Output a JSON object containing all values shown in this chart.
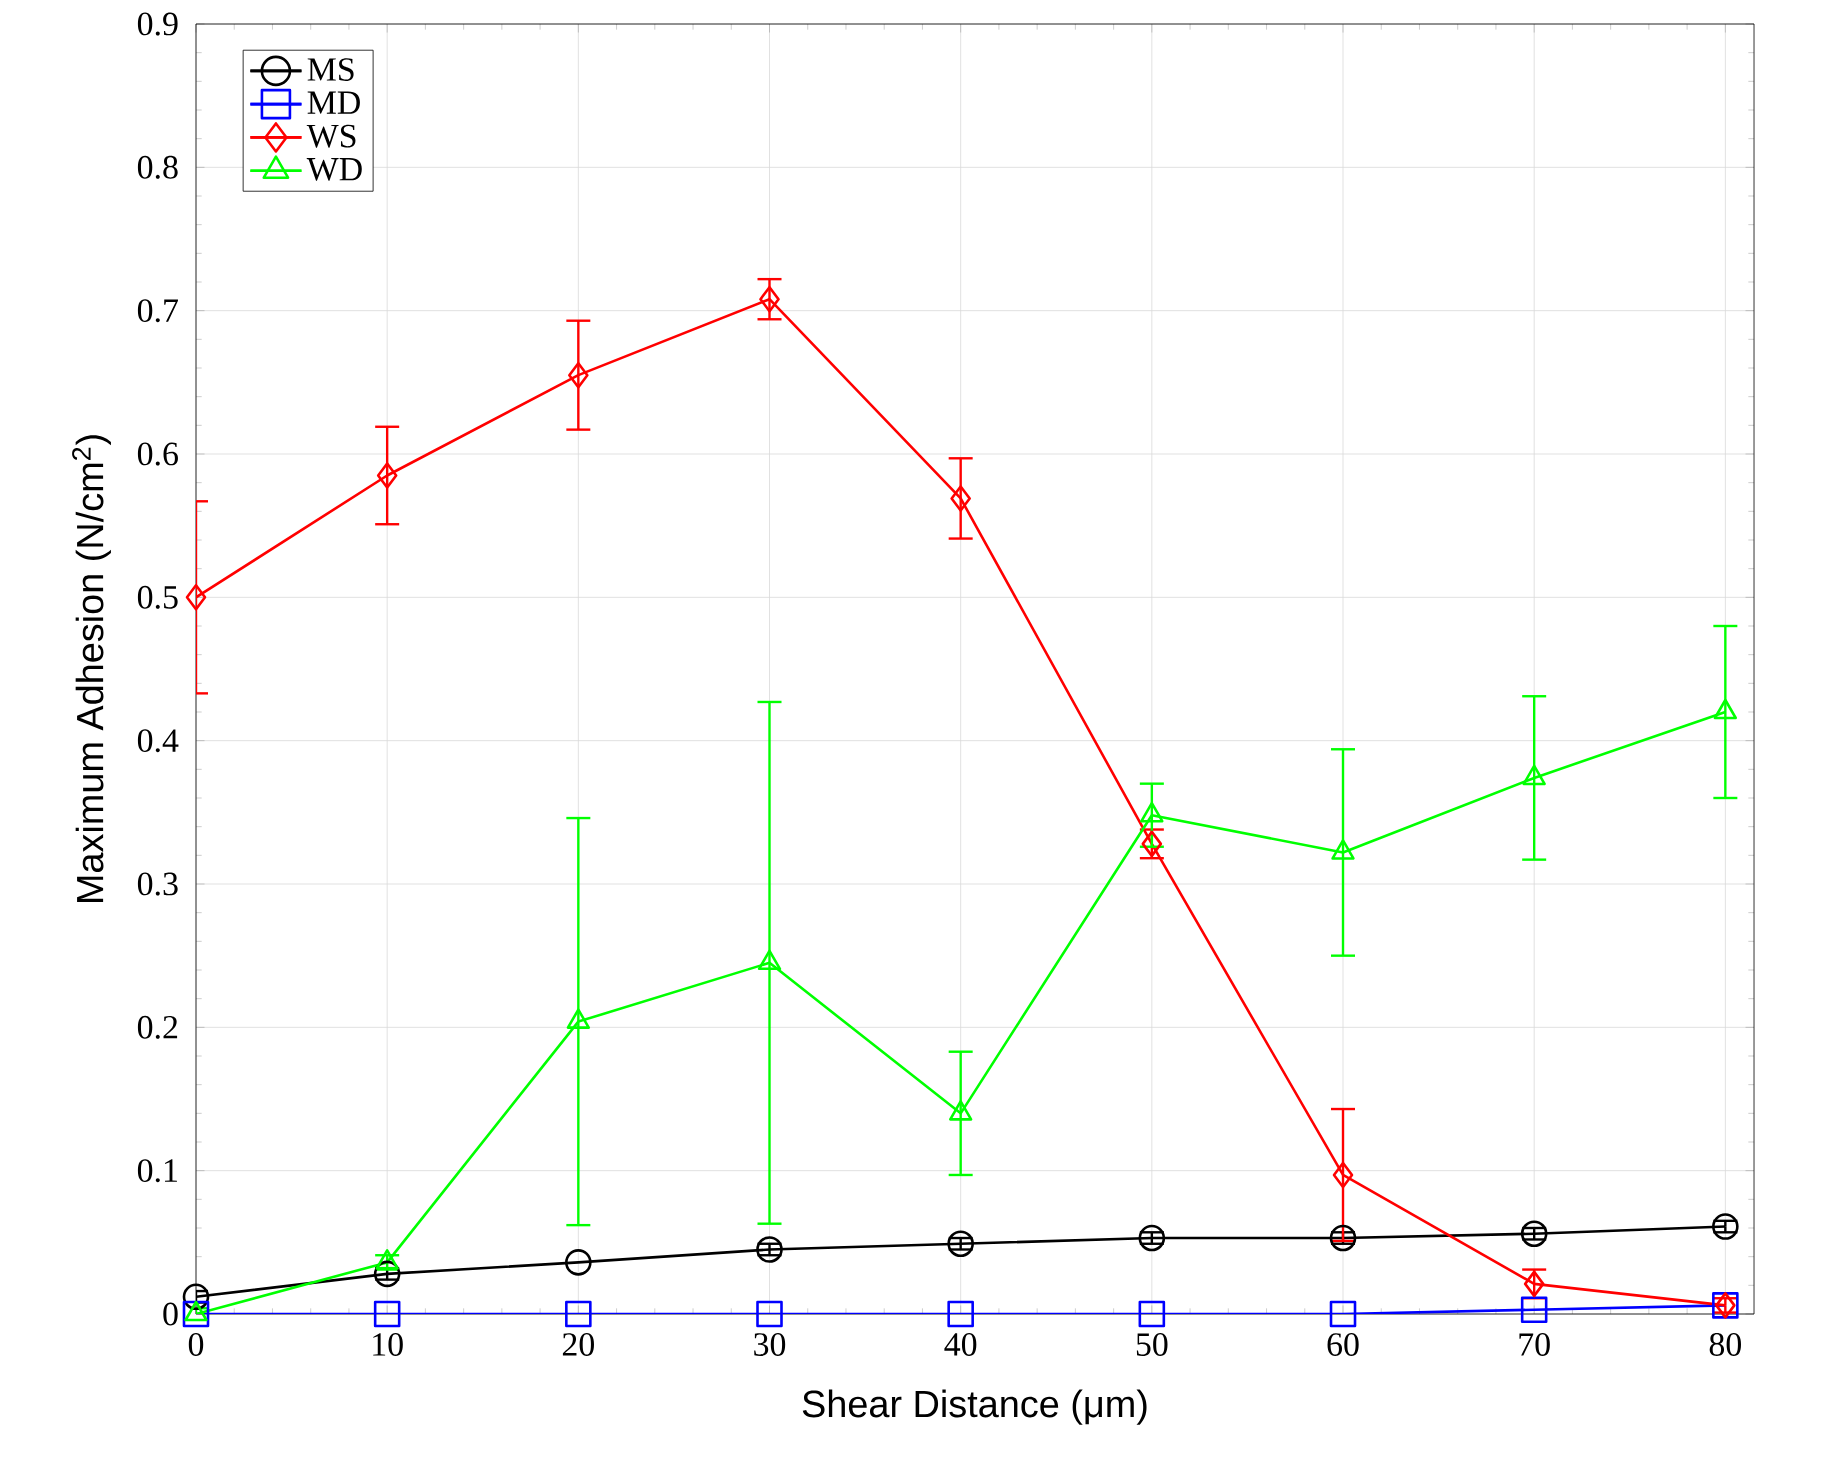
{
  "chart_data": {
    "type": "line",
    "xlabel": "Shear Distance (μm)",
    "ylabel": "Maximum Adhesion (N/cm$^{2}$)",
    "x": [
      0,
      10,
      20,
      30,
      40,
      50,
      60,
      70,
      80
    ],
    "series": [
      {
        "name": "MS",
        "color": "#000000",
        "marker": "circle",
        "values": [
          0.012,
          0.028,
          0.036,
          0.045,
          0.049,
          0.053,
          0.053,
          0.056,
          0.061
        ],
        "errors": [
          0.004,
          0.004,
          null,
          0.004,
          0.004,
          0.004,
          0.004,
          0.004,
          0.004
        ]
      },
      {
        "name": "MD",
        "color": "#0000ff",
        "marker": "square",
        "values": [
          0,
          0,
          0,
          0,
          0,
          0,
          0,
          0.003,
          0.006
        ]
      },
      {
        "name": "WS",
        "color": "#ff0000",
        "marker": "diamond",
        "values": [
          0.5,
          0.585,
          0.655,
          0.708,
          0.569,
          0.328,
          0.097,
          0.021,
          0.006
        ],
        "errors": [
          0.067,
          0.034,
          0.038,
          0.014,
          0.028,
          0.01,
          0.046,
          0.01,
          0.005
        ]
      },
      {
        "name": "WD",
        "color": "#00ff00",
        "marker": "triangle",
        "values": [
          0,
          0.036,
          0.204,
          0.245,
          0.14,
          0.348,
          0.322,
          0.374,
          0.42
        ],
        "errors": [
          0.004,
          0.005,
          0.142,
          0.182,
          0.043,
          0.022,
          0.072,
          0.057,
          0.06
        ]
      }
    ],
    "xlim": [
      0,
      81.5
    ],
    "ylim": [
      0,
      0.9
    ],
    "xticks": [
      0,
      10,
      20,
      30,
      40,
      50,
      60,
      70,
      80
    ],
    "yticks": [
      0,
      0.1,
      0.2,
      0.3,
      0.4,
      0.5,
      0.6,
      0.7,
      0.8,
      0.9
    ],
    "grid": true,
    "legend": "top left",
    "line_style": "solid"
  }
}
